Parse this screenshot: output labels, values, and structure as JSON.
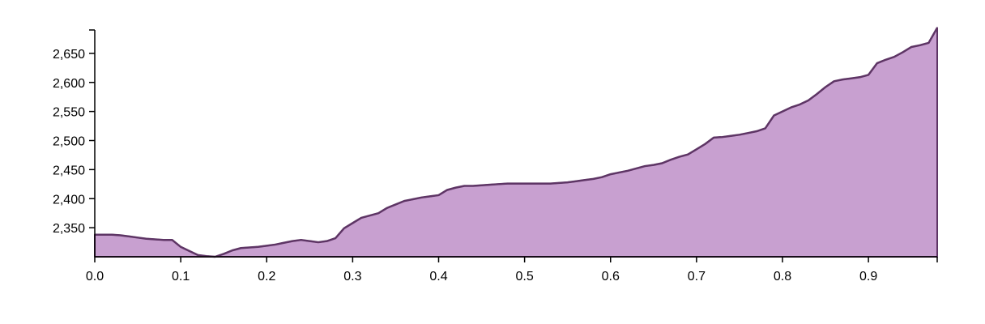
{
  "chart_data": {
    "type": "area",
    "x": [
      0.0,
      0.01,
      0.02,
      0.03,
      0.04,
      0.05,
      0.06,
      0.07,
      0.08,
      0.09,
      0.1,
      0.11,
      0.12,
      0.13,
      0.14,
      0.15,
      0.16,
      0.17,
      0.18,
      0.19,
      0.2,
      0.21,
      0.22,
      0.23,
      0.24,
      0.25,
      0.26,
      0.27,
      0.28,
      0.29,
      0.3,
      0.31,
      0.32,
      0.33,
      0.34,
      0.35,
      0.36,
      0.37,
      0.38,
      0.39,
      0.4,
      0.41,
      0.42,
      0.43,
      0.44,
      0.45,
      0.46,
      0.47,
      0.48,
      0.49,
      0.5,
      0.51,
      0.52,
      0.53,
      0.54,
      0.55,
      0.56,
      0.57,
      0.58,
      0.59,
      0.6,
      0.61,
      0.62,
      0.63,
      0.64,
      0.65,
      0.66,
      0.67,
      0.68,
      0.69,
      0.7,
      0.71,
      0.72,
      0.73,
      0.74,
      0.75,
      0.76,
      0.77,
      0.78,
      0.79,
      0.8,
      0.81,
      0.82,
      0.83,
      0.84,
      0.85,
      0.86,
      0.87,
      0.88,
      0.89,
      0.9,
      0.91,
      0.92,
      0.93,
      0.94,
      0.95,
      0.96,
      0.97,
      0.98
    ],
    "y": [
      2338,
      2338,
      2338,
      2337,
      2335,
      2333,
      2331,
      2330,
      2329,
      2329,
      2317,
      2310,
      2303,
      2301,
      2300,
      2305,
      2311,
      2315,
      2316,
      2317,
      2319,
      2321,
      2324,
      2327,
      2329,
      2327,
      2325,
      2327,
      2332,
      2349,
      2358,
      2367,
      2371,
      2375,
      2384,
      2390,
      2396,
      2399,
      2402,
      2404,
      2406,
      2415,
      2419,
      2422,
      2422,
      2423,
      2424,
      2425,
      2426,
      2426,
      2426,
      2426,
      2426,
      2426,
      2427,
      2428,
      2430,
      2432,
      2434,
      2437,
      2442,
      2445,
      2448,
      2452,
      2456,
      2458,
      2461,
      2467,
      2472,
      2476,
      2485,
      2494,
      2505,
      2506,
      2508,
      2510,
      2513,
      2516,
      2521,
      2543,
      2550,
      2557,
      2562,
      2569,
      2580,
      2592,
      2602,
      2605,
      2607,
      2609,
      2613,
      2633,
      2639,
      2644,
      2652,
      2661,
      2664,
      2668,
      2694
    ],
    "xlim": [
      0.0,
      0.98
    ],
    "ylim": [
      2300,
      2700
    ],
    "x_ticks": [
      "0.0",
      "0.1",
      "0.2",
      "0.3",
      "0.4",
      "0.5",
      "0.6",
      "0.7",
      "0.8",
      "0.9"
    ],
    "x_tick_values": [
      0.0,
      0.1,
      0.2,
      0.3,
      0.4,
      0.5,
      0.6,
      0.7,
      0.8,
      0.9
    ],
    "y_ticks": [
      "2,350",
      "2,400",
      "2,450",
      "2,500",
      "2,550",
      "2,600",
      "2,650"
    ],
    "y_tick_values": [
      2350,
      2400,
      2450,
      2500,
      2550,
      2600,
      2650
    ],
    "title": "",
    "xlabel": "",
    "ylabel": "",
    "grid": false,
    "colors": {
      "fill": "#c8a0d0",
      "stroke": "#5e3565"
    }
  }
}
